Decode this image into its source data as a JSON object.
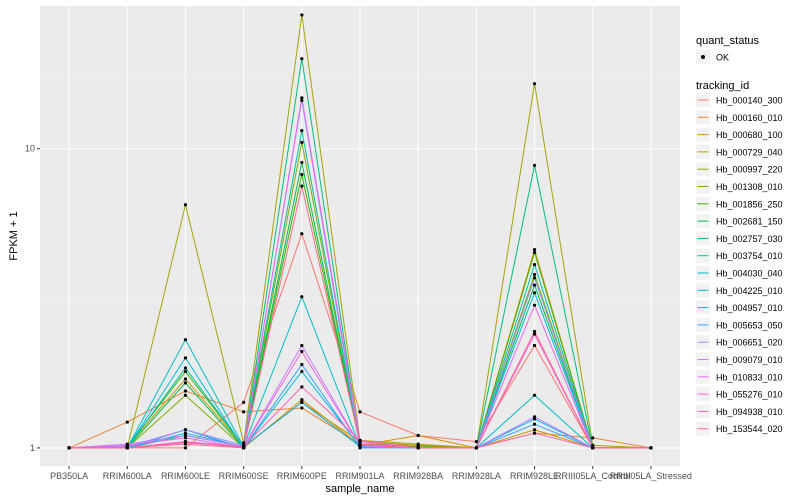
{
  "chart_data": {
    "type": "line",
    "title": "",
    "xlabel": "sample_name",
    "ylabel": "FPKM + 1",
    "yscale": "log10",
    "ylim": [
      0.87,
      30
    ],
    "yticks": [
      {
        "value": 1,
        "label": "1"
      },
      {
        "value": 10,
        "label": "10"
      }
    ],
    "grid": true,
    "categories": [
      "PB350LA",
      "RRIM600LA",
      "RRIM600LE",
      "RRIM600SE",
      "RRIM600PE",
      "RRIM901LA",
      "RRIM928BA",
      "RRIM928LA",
      "RRIM928LE",
      "RRIII05LA_Control",
      "RRIII05LA_Stressed"
    ],
    "legend": {
      "position": "right",
      "shape_title": "quant_status",
      "shape_label": "OK",
      "color_title": "tracking_id"
    },
    "series": [
      {
        "name": "Hb_000140_300",
        "color": "#F8766D",
        "values": [
          1,
          1,
          1,
          1.42,
          5.2,
          1.32,
          1.1,
          1.05,
          2.2,
          1,
          1
        ]
      },
      {
        "name": "Hb_000160_010",
        "color": "#EA8331",
        "values": [
          1,
          1.22,
          1.55,
          1.32,
          1.36,
          1.03,
          1.02,
          1,
          1.12,
          1.08,
          1
        ]
      },
      {
        "name": "Hb_000680_100",
        "color": "#D89000",
        "values": [
          1,
          1,
          1.05,
          1,
          1.45,
          1.02,
          1.1,
          1,
          4.6,
          1,
          1
        ]
      },
      {
        "name": "Hb_000729_040",
        "color": "#C09B00",
        "values": [
          1,
          1.01,
          1.7,
          1.01,
          1.42,
          1.05,
          1.02,
          1,
          1.15,
          1,
          1
        ]
      },
      {
        "name": "Hb_000997_220",
        "color": "#A3A500",
        "values": [
          1,
          1,
          6.5,
          1.04,
          28,
          1.06,
          1.03,
          1,
          16.5,
          1.02,
          1
        ]
      },
      {
        "name": "Hb_001308_010",
        "color": "#7CAE00",
        "values": [
          1,
          1,
          1.5,
          1,
          10.5,
          1.02,
          1,
          1,
          3.8,
          1,
          1
        ]
      },
      {
        "name": "Hb_001856_250",
        "color": "#39B600",
        "values": [
          1,
          1.01,
          1.8,
          1.01,
          8.2,
          1.03,
          1.01,
          1,
          4.5,
          1,
          1
        ]
      },
      {
        "name": "Hb_002681_150",
        "color": "#00BB4E",
        "values": [
          1,
          1,
          1.65,
          1,
          9.0,
          1.02,
          1,
          1,
          3.5,
          1,
          1
        ]
      },
      {
        "name": "Hb_002757_030",
        "color": "#00BF7D",
        "values": [
          1,
          1,
          1.1,
          1.01,
          20,
          1.02,
          1,
          1,
          8.8,
          1,
          1
        ]
      },
      {
        "name": "Hb_003754_010",
        "color": "#00C1A3",
        "values": [
          1,
          1,
          1.85,
          1.01,
          11.5,
          1.02,
          1,
          1,
          4.1,
          1,
          1
        ]
      },
      {
        "name": "Hb_004030_040",
        "color": "#00BFC4",
        "values": [
          1,
          1,
          2.3,
          1.01,
          3.2,
          1.01,
          1,
          1,
          1.5,
          1,
          1
        ]
      },
      {
        "name": "Hb_004225_010",
        "color": "#00BAE0",
        "values": [
          1,
          1,
          2.0,
          1,
          1.8,
          1.01,
          1,
          1,
          3.3,
          1,
          1
        ]
      },
      {
        "name": "Hb_004957_010",
        "color": "#00B0F6",
        "values": [
          1,
          1,
          1.12,
          1.01,
          1.42,
          1.01,
          1,
          1,
          1.25,
          1,
          1
        ]
      },
      {
        "name": "Hb_005653_050",
        "color": "#35A2FF",
        "values": [
          1,
          1,
          1.15,
          1,
          1.9,
          1,
          1,
          1,
          1.2,
          1,
          1
        ]
      },
      {
        "name": "Hb_006651_020",
        "color": "#9590FF",
        "values": [
          1,
          1.01,
          1.15,
          1.02,
          14.5,
          1.01,
          1,
          1,
          3.7,
          1,
          1
        ]
      },
      {
        "name": "Hb_009079_010",
        "color": "#C77CFF",
        "values": [
          1,
          1.03,
          1.1,
          1.01,
          2.2,
          1.02,
          1,
          1,
          1.27,
          1,
          1
        ]
      },
      {
        "name": "Hb_010833_010",
        "color": "#E76BF3",
        "values": [
          1,
          1.02,
          1.08,
          1,
          14.8,
          1.05,
          1,
          1,
          3.0,
          1,
          1
        ]
      },
      {
        "name": "Hb_055276_010",
        "color": "#FA62DB",
        "values": [
          1,
          1,
          1.05,
          1.01,
          2.1,
          1.02,
          1,
          1,
          2.4,
          1,
          1
        ]
      },
      {
        "name": "Hb_094938_010",
        "color": "#FF62BC",
        "values": [
          1,
          1,
          1.04,
          1.01,
          1.6,
          1.06,
          1,
          1,
          1.12,
          1,
          1
        ]
      },
      {
        "name": "Hb_153544_020",
        "color": "#FF6C91",
        "values": [
          1,
          1,
          1.03,
          1,
          7.5,
          1.03,
          1,
          1,
          2.45,
          1,
          1
        ]
      }
    ]
  }
}
